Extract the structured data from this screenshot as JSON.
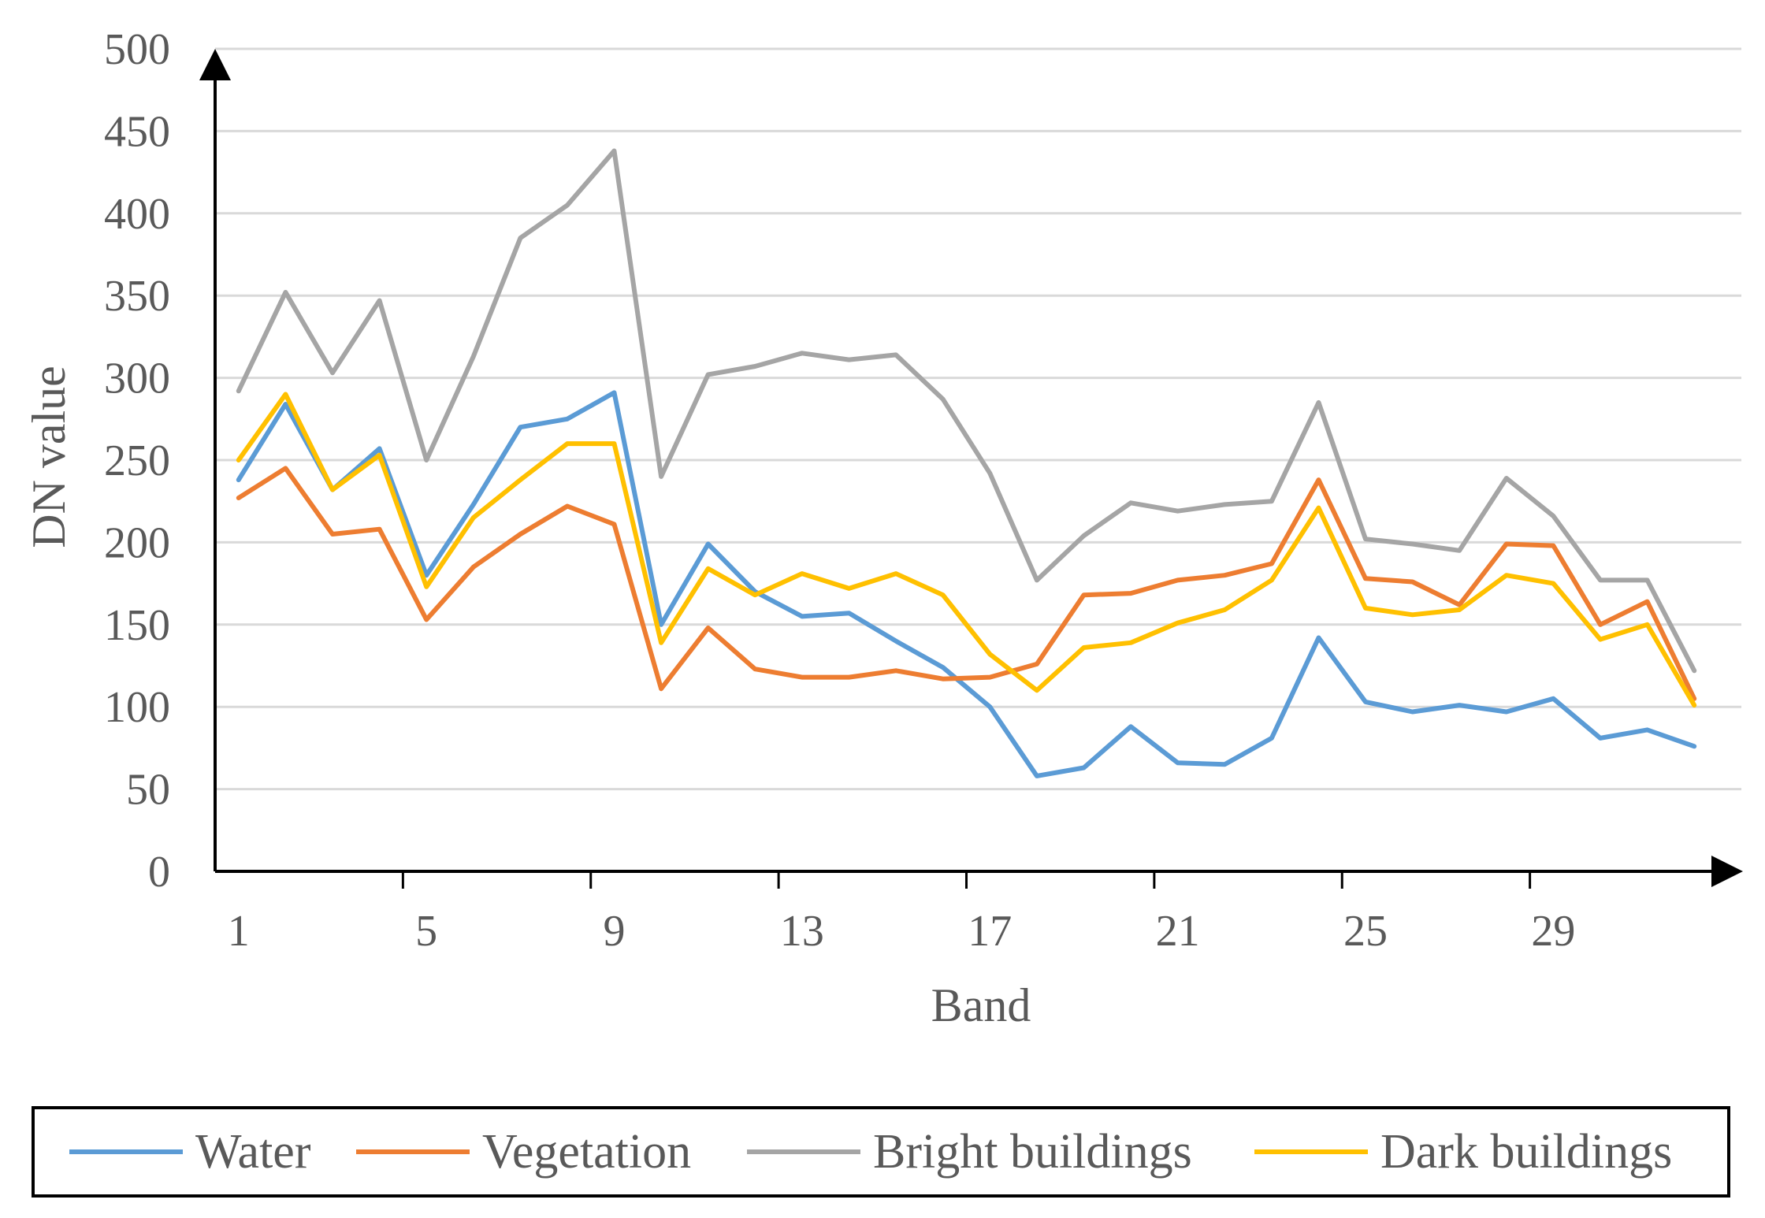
{
  "chart_data": {
    "type": "line",
    "title": "",
    "xlabel": "Band",
    "ylabel": "DN value",
    "x": [
      1,
      2,
      3,
      4,
      5,
      6,
      7,
      8,
      9,
      10,
      11,
      12,
      13,
      14,
      15,
      16,
      17,
      18,
      19,
      20,
      21,
      22,
      23,
      24,
      25,
      26,
      27,
      28,
      29,
      30,
      31,
      32
    ],
    "xticks": [
      1,
      5,
      9,
      13,
      17,
      21,
      25,
      29
    ],
    "xlim": [
      0.5,
      32.5
    ],
    "ylim": [
      0,
      500
    ],
    "yticks": [
      0,
      50,
      100,
      150,
      200,
      250,
      300,
      350,
      400,
      450,
      500
    ],
    "grid": "horizontal",
    "legend": "bottom",
    "series": [
      {
        "name": "Water",
        "color": "#5B9BD5",
        "values": [
          238,
          284,
          232,
          257,
          180,
          223,
          270,
          275,
          291,
          150,
          199,
          170,
          155,
          157,
          140,
          124,
          100,
          58,
          63,
          88,
          66,
          65,
          81,
          142,
          103,
          97,
          101,
          97,
          105,
          81,
          86,
          76
        ]
      },
      {
        "name": "Vegetation",
        "color": "#ED7D31",
        "values": [
          227,
          245,
          205,
          208,
          153,
          185,
          205,
          222,
          211,
          111,
          148,
          123,
          118,
          118,
          122,
          117,
          118,
          126,
          168,
          169,
          177,
          180,
          187,
          238,
          178,
          176,
          162,
          199,
          198,
          150,
          164,
          105
        ]
      },
      {
        "name": "Bright buildings",
        "color": "#A5A5A5",
        "values": [
          292,
          352,
          303,
          347,
          250,
          313,
          385,
          405,
          438,
          240,
          302,
          307,
          315,
          311,
          314,
          287,
          242,
          177,
          204,
          224,
          219,
          223,
          225,
          285,
          202,
          199,
          195,
          239,
          216,
          177,
          177,
          122
        ]
      },
      {
        "name": "Dark buildings",
        "color": "#FFC000",
        "values": [
          250,
          290,
          232,
          253,
          173,
          215,
          238,
          260,
          260,
          139,
          184,
          168,
          181,
          172,
          181,
          168,
          132,
          110,
          136,
          139,
          151,
          159,
          177,
          221,
          160,
          156,
          159,
          180,
          175,
          141,
          150,
          101
        ]
      }
    ]
  },
  "legend_items": [
    "Water",
    "Vegetation",
    "Bright buildings",
    "Dark buildings"
  ]
}
